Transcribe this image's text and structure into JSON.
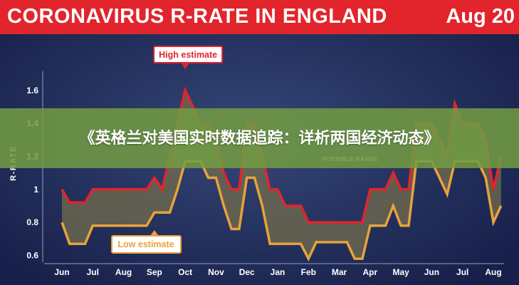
{
  "header": {
    "title": "CORONAVIRUS R-RATE IN ENGLAND",
    "date": "Aug 20"
  },
  "overlay": {
    "caption": "《英格兰对美国实时数据追踪：详析两国经济动态》"
  },
  "colors": {
    "title_bar": "#e2242c",
    "background": "#1f2a55",
    "high_line": "#e2242c",
    "low_line": "#e8a23a",
    "band": "#6f6a4d",
    "overlay": "#729c42"
  },
  "chart_data": {
    "type": "line",
    "ylabel": "R-RATE",
    "ylim": [
      0.55,
      1.75
    ],
    "yticks": [
      0.6,
      0.8,
      1,
      1.2,
      1.4,
      1.6
    ],
    "yticklabels": [
      "0.6",
      "0.8",
      "1",
      "1.2",
      "1.4",
      "1.6"
    ],
    "categories": [
      "Jun",
      "Jul",
      "Aug",
      "Sep",
      "Oct",
      "Nov",
      "Dec",
      "Jan",
      "Feb",
      "Mar",
      "Apr",
      "May",
      "Jun",
      "Jul",
      "Aug"
    ],
    "grid": false,
    "x": [
      0,
      0.25,
      0.5,
      0.75,
      1,
      1.25,
      1.5,
      1.75,
      2,
      2.25,
      2.5,
      2.75,
      3,
      3.25,
      3.5,
      3.75,
      4,
      4.25,
      4.5,
      4.75,
      5,
      5.25,
      5.5,
      5.75,
      6,
      6.25,
      6.5,
      6.75,
      7,
      7.25,
      7.5,
      7.75,
      8,
      8.25,
      8.5,
      8.75,
      9,
      9.25,
      9.5,
      9.75,
      10,
      10.25,
      10.5,
      10.75,
      11,
      11.25,
      11.5,
      11.75,
      12,
      12.25,
      12.5,
      12.75,
      13,
      13.25,
      13.5,
      13.75,
      14,
      14.25
    ],
    "series": [
      {
        "name": "High estimate",
        "color": "#e2242c",
        "values": [
          1.0,
          0.92,
          0.92,
          0.92,
          1.0,
          1.0,
          1.0,
          1.0,
          1.0,
          1.0,
          1.0,
          1.0,
          1.07,
          1.0,
          1.2,
          1.4,
          1.6,
          1.5,
          1.4,
          1.4,
          1.3,
          1.1,
          1.0,
          1.0,
          1.4,
          1.4,
          1.2,
          1.0,
          1.0,
          0.9,
          0.9,
          0.9,
          0.8,
          0.8,
          0.8,
          0.8,
          0.8,
          0.8,
          0.8,
          0.8,
          1.0,
          1.0,
          1.0,
          1.1,
          1.0,
          1.0,
          1.4,
          1.4,
          1.4,
          1.3,
          1.2,
          1.52,
          1.4,
          1.4,
          1.4,
          1.3,
          1.0,
          1.2
        ]
      },
      {
        "name": "Low estimate",
        "color": "#e8a23a",
        "values": [
          0.8,
          0.67,
          0.67,
          0.67,
          0.78,
          0.78,
          0.78,
          0.78,
          0.78,
          0.78,
          0.78,
          0.78,
          0.86,
          0.86,
          0.86,
          1.0,
          1.17,
          1.17,
          1.17,
          1.07,
          1.07,
          0.9,
          0.76,
          0.76,
          1.07,
          1.07,
          0.9,
          0.67,
          0.67,
          0.67,
          0.67,
          0.67,
          0.58,
          0.68,
          0.68,
          0.68,
          0.68,
          0.68,
          0.58,
          0.58,
          0.78,
          0.78,
          0.78,
          0.9,
          0.78,
          0.78,
          1.17,
          1.17,
          1.17,
          1.07,
          0.97,
          1.17,
          1.17,
          1.17,
          1.17,
          1.07,
          0.8,
          0.9
        ]
      }
    ],
    "annotations": [
      {
        "text": "High estimate",
        "color": "#e2242c"
      },
      {
        "text": "Low estimate",
        "color": "#e8a23a"
      },
      {
        "text": "POSSIBLE RANGE",
        "color": "#ffffff"
      }
    ]
  }
}
